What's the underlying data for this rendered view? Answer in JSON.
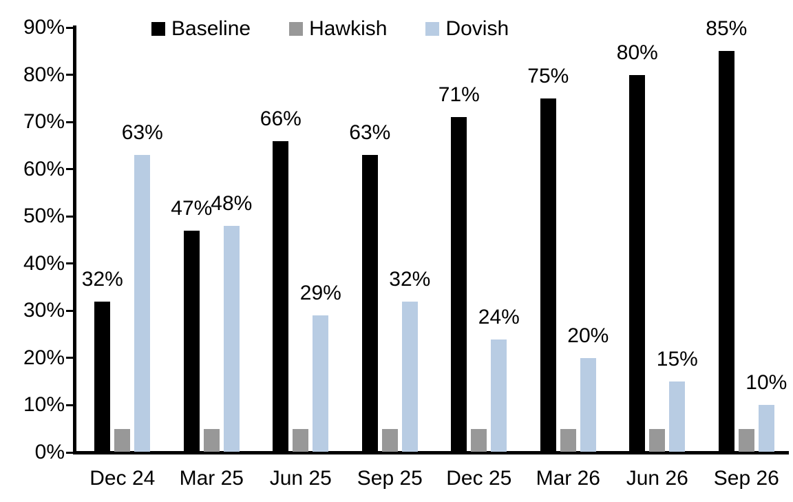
{
  "chart_data": {
    "type": "bar",
    "title": "",
    "xlabel": "",
    "ylabel": "",
    "categories": [
      "Dec 24",
      "Mar 25",
      "Jun 25",
      "Sep 25",
      "Dec 25",
      "Mar 26",
      "Jun 26",
      "Sep 26"
    ],
    "series": [
      {
        "name": "Baseline",
        "color": "#000000",
        "values": [
          32,
          47,
          66,
          63,
          71,
          75,
          80,
          85
        ],
        "data_labels": [
          "32%",
          "47%",
          "66%",
          "63%",
          "71%",
          "75%",
          "80%",
          "85%"
        ],
        "show_labels": true
      },
      {
        "name": "Hawkish",
        "color": "#989898",
        "values": [
          5,
          5,
          5,
          5,
          5,
          5,
          5,
          5
        ],
        "data_labels": [],
        "show_labels": false
      },
      {
        "name": "Dovish",
        "color": "#b8cce3",
        "values": [
          63,
          48,
          29,
          32,
          24,
          20,
          15,
          10
        ],
        "data_labels": [
          "63%",
          "48%",
          "29%",
          "32%",
          "24%",
          "20%",
          "15%",
          "10%"
        ],
        "show_labels": true
      }
    ],
    "ylim": [
      0,
      90
    ],
    "ytick_step": 10,
    "ytick_labels": [
      "0%",
      "10%",
      "20%",
      "30%",
      "40%",
      "50%",
      "60%",
      "70%",
      "80%",
      "90%"
    ],
    "grid": false,
    "legend": {
      "position": "top",
      "items": [
        "Baseline",
        "Hawkish",
        "Dovish"
      ]
    },
    "axis_color": "#000000"
  }
}
